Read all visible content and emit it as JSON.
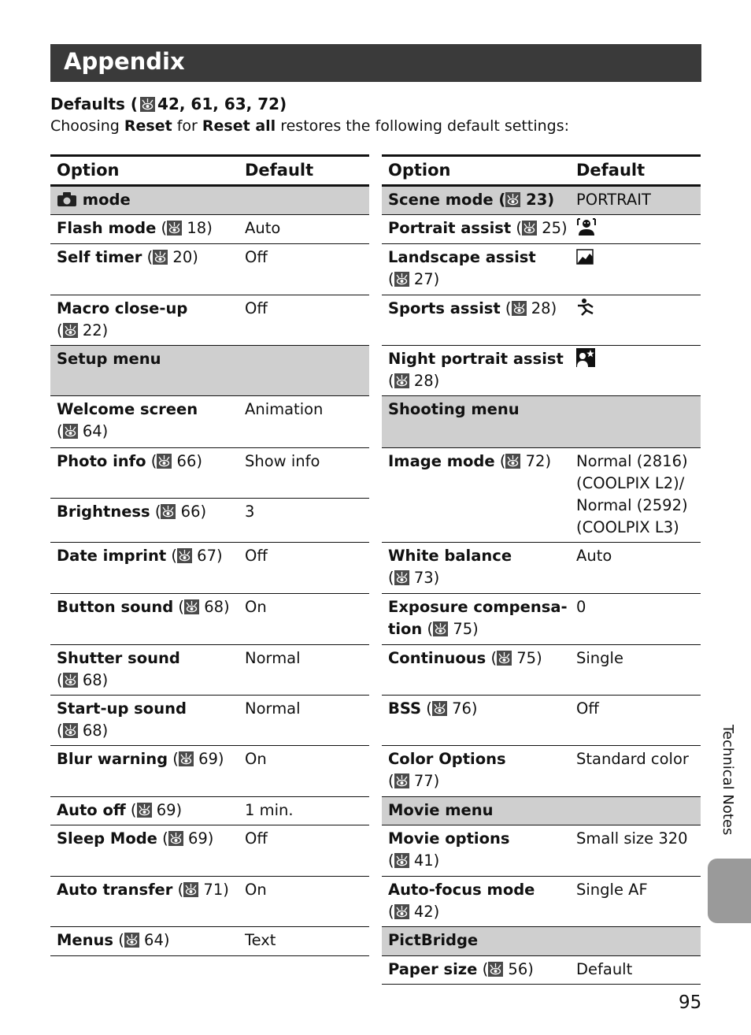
{
  "title": "Appendix",
  "subtitle": {
    "text": "Defaults (",
    "refs": "42, 61, 63, 72)"
  },
  "intro": {
    "a": "Choosing ",
    "b": "Reset",
    "c": " for ",
    "d": "Reset all",
    "e": " restores the following default settings:"
  },
  "header": {
    "option": "Option",
    "default": "Default"
  },
  "left_rows": [
    {
      "label": "mode",
      "group": true,
      "icon": "camera-icon"
    },
    {
      "label": "Flash mode",
      "ref": "18",
      "value": "Auto"
    },
    {
      "label": "Self timer",
      "ref": "20",
      "value": "Off"
    },
    {
      "label": "Macro close-up",
      "ref": "22",
      "value": "Off"
    },
    {
      "label": "Setup menu",
      "group": true
    },
    {
      "label": "Welcome screen",
      "ref": "64",
      "value": "Animation"
    },
    {
      "label": "Photo info",
      "ref": "66",
      "value": "Show info"
    },
    {
      "label": "Brightness",
      "ref": "66",
      "value": "3"
    },
    {
      "label": "Date imprint",
      "ref": "67",
      "value": "Off"
    },
    {
      "label": "Button sound",
      "ref": "68",
      "value": "On"
    },
    {
      "label": "Shutter sound",
      "ref": "68",
      "value": "Normal"
    },
    {
      "label": "Start-up sound",
      "ref": "68",
      "value": "Normal"
    },
    {
      "label": "Blur warning",
      "ref": "69",
      "value": "On"
    },
    {
      "label": "Auto off",
      "ref": "69",
      "value": "1 min."
    },
    {
      "label": "Sleep Mode",
      "ref": "69",
      "value": "Off"
    },
    {
      "label": "Auto transfer",
      "ref": "71",
      "value": "On"
    },
    {
      "label": "Menus",
      "ref": "64",
      "value": "Text"
    }
  ],
  "right_rows": [
    {
      "label": "Scene mode",
      "ref": "23",
      "value": "PORTRAIT",
      "group": true
    },
    {
      "label": "Portrait assist",
      "ref": "25",
      "icon": "portrait-assist-icon"
    },
    {
      "label": "Landscape assist",
      "ref": "27",
      "icon": "landscape-assist-icon"
    },
    {
      "label": "Sports assist",
      "ref": "28",
      "icon": "sports-assist-icon"
    },
    {
      "label": "Night portrait assist",
      "ref": "28",
      "icon": "night-portrait-assist-icon"
    },
    {
      "label": "Shooting menu",
      "group": true
    },
    {
      "label": "Image mode",
      "ref": "72",
      "value": "Normal (2816) (COOLPIX L2)/ Normal (2592) (COOLPIX L3)"
    },
    {
      "label": "White balance",
      "ref": "73",
      "value": "Auto"
    },
    {
      "label": "Exposure compensa-tion",
      "ref": "75",
      "value": "0"
    },
    {
      "label": "Continuous",
      "ref": "75",
      "value": "Single"
    },
    {
      "label": "BSS",
      "ref": "76",
      "value": "Off"
    },
    {
      "label": "Color Options",
      "ref": "77",
      "value": "Standard color"
    },
    {
      "label": "Movie menu",
      "group": true
    },
    {
      "label": "Movie options",
      "ref": "41",
      "value": "Small size 320"
    },
    {
      "label": "Auto-focus mode",
      "ref": "42",
      "value": "Single AF"
    },
    {
      "label": "PictBridge",
      "group": true
    },
    {
      "label": "Paper size",
      "ref": "56",
      "value": "Default"
    }
  ],
  "side_tab": "Technical Notes",
  "page_number": "95"
}
